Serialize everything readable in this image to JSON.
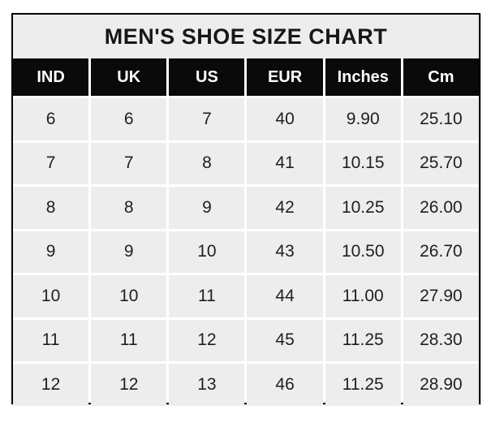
{
  "title": "MEN'S SHOE SIZE CHART",
  "chart_data": {
    "type": "table",
    "title": "MEN'S SHOE SIZE CHART",
    "columns": [
      "IND",
      "UK",
      "US",
      "EUR",
      "Inches",
      "Cm"
    ],
    "rows": [
      [
        "6",
        "6",
        "7",
        "40",
        "9.90",
        "25.10"
      ],
      [
        "7",
        "7",
        "8",
        "41",
        "10.15",
        "25.70"
      ],
      [
        "8",
        "8",
        "9",
        "42",
        "10.25",
        "26.00"
      ],
      [
        "9",
        "9",
        "10",
        "43",
        "10.50",
        "26.70"
      ],
      [
        "10",
        "10",
        "11",
        "44",
        "11.00",
        "27.90"
      ],
      [
        "11",
        "11",
        "12",
        "45",
        "11.25",
        "28.30"
      ],
      [
        "12",
        "12",
        "13",
        "46",
        "11.25",
        "28.90"
      ]
    ]
  },
  "colors": {
    "page_bg": "#ffffff",
    "title_bg": "#ededed",
    "header_bg": "#0a0a0a",
    "header_text": "#ffffff",
    "cell_bg": "#ededed",
    "grid_line": "#ffffff",
    "outer_border": "#000000",
    "cell_text": "#1f1f1f"
  }
}
